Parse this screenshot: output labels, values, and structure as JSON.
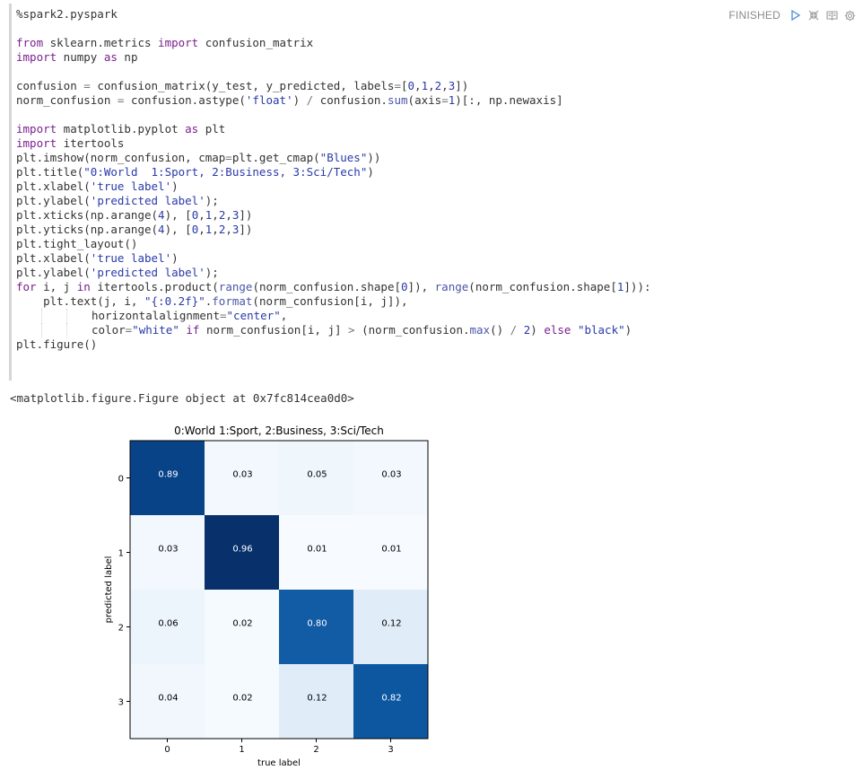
{
  "paragraph": {
    "status": "FINISHED",
    "toolbar": {
      "run_icon": "play-icon",
      "hide_editor_icon": "collapse-arrows-icon",
      "hide_output_icon": "book-icon",
      "settings_icon": "gear-icon"
    },
    "code_lines": [
      [
        {
          "t": "%spark2.pyspark",
          "c": ""
        }
      ],
      [],
      [
        {
          "t": "from",
          "c": "kw"
        },
        {
          "t": " sklearn.metrics ",
          "c": ""
        },
        {
          "t": "import",
          "c": "kw"
        },
        {
          "t": " confusion_matrix",
          "c": ""
        }
      ],
      [
        {
          "t": "import",
          "c": "kw"
        },
        {
          "t": " numpy ",
          "c": ""
        },
        {
          "t": "as",
          "c": "kw"
        },
        {
          "t": " np",
          "c": ""
        }
      ],
      [],
      [
        {
          "t": "confusion ",
          "c": ""
        },
        {
          "t": "=",
          "c": "op"
        },
        {
          "t": " confusion_matrix(y_test, y_predicted, labels",
          "c": ""
        },
        {
          "t": "=",
          "c": "op"
        },
        {
          "t": "[",
          "c": ""
        },
        {
          "t": "0",
          "c": "num"
        },
        {
          "t": ",",
          "c": ""
        },
        {
          "t": "1",
          "c": "num"
        },
        {
          "t": ",",
          "c": ""
        },
        {
          "t": "2",
          "c": "num"
        },
        {
          "t": ",",
          "c": ""
        },
        {
          "t": "3",
          "c": "num"
        },
        {
          "t": "])",
          "c": ""
        }
      ],
      [
        {
          "t": "norm_confusion ",
          "c": ""
        },
        {
          "t": "=",
          "c": "op"
        },
        {
          "t": " confusion.astype(",
          "c": ""
        },
        {
          "t": "'float'",
          "c": "str"
        },
        {
          "t": ") ",
          "c": ""
        },
        {
          "t": "/",
          "c": "op"
        },
        {
          "t": " confusion.",
          "c": ""
        },
        {
          "t": "sum",
          "c": "bi"
        },
        {
          "t": "(axis",
          "c": ""
        },
        {
          "t": "=",
          "c": "op"
        },
        {
          "t": "1",
          "c": "num"
        },
        {
          "t": ")[:, np.newaxis]",
          "c": ""
        }
      ],
      [],
      [
        {
          "t": "import",
          "c": "kw"
        },
        {
          "t": " matplotlib.pyplot ",
          "c": ""
        },
        {
          "t": "as",
          "c": "kw"
        },
        {
          "t": " plt",
          "c": ""
        }
      ],
      [
        {
          "t": "import",
          "c": "kw"
        },
        {
          "t": " itertools",
          "c": ""
        }
      ],
      [
        {
          "t": "plt.imshow(norm_confusion, cmap",
          "c": ""
        },
        {
          "t": "=",
          "c": "op"
        },
        {
          "t": "plt.get_cmap(",
          "c": ""
        },
        {
          "t": "\"Blues\"",
          "c": "str"
        },
        {
          "t": "))",
          "c": ""
        }
      ],
      [
        {
          "t": "plt.title(",
          "c": ""
        },
        {
          "t": "\"0:World  1:Sport, 2:Business, 3:Sci/Tech\"",
          "c": "str"
        },
        {
          "t": ")",
          "c": ""
        }
      ],
      [
        {
          "t": "plt.xlabel(",
          "c": ""
        },
        {
          "t": "'true label'",
          "c": "str"
        },
        {
          "t": ")",
          "c": ""
        }
      ],
      [
        {
          "t": "plt.ylabel(",
          "c": ""
        },
        {
          "t": "'predicted label'",
          "c": "str"
        },
        {
          "t": ");",
          "c": ""
        }
      ],
      [
        {
          "t": "plt.xticks(np.arange(",
          "c": ""
        },
        {
          "t": "4",
          "c": "num"
        },
        {
          "t": "), [",
          "c": ""
        },
        {
          "t": "0",
          "c": "num"
        },
        {
          "t": ",",
          "c": ""
        },
        {
          "t": "1",
          "c": "num"
        },
        {
          "t": ",",
          "c": ""
        },
        {
          "t": "2",
          "c": "num"
        },
        {
          "t": ",",
          "c": ""
        },
        {
          "t": "3",
          "c": "num"
        },
        {
          "t": "])",
          "c": ""
        }
      ],
      [
        {
          "t": "plt.yticks(np.arange(",
          "c": ""
        },
        {
          "t": "4",
          "c": "num"
        },
        {
          "t": "), [",
          "c": ""
        },
        {
          "t": "0",
          "c": "num"
        },
        {
          "t": ",",
          "c": ""
        },
        {
          "t": "1",
          "c": "num"
        },
        {
          "t": ",",
          "c": ""
        },
        {
          "t": "2",
          "c": "num"
        },
        {
          "t": ",",
          "c": ""
        },
        {
          "t": "3",
          "c": "num"
        },
        {
          "t": "])",
          "c": ""
        }
      ],
      [
        {
          "t": "plt.tight_layout()",
          "c": ""
        }
      ],
      [
        {
          "t": "plt.xlabel(",
          "c": ""
        },
        {
          "t": "'true label'",
          "c": "str"
        },
        {
          "t": ")",
          "c": ""
        }
      ],
      [
        {
          "t": "plt.ylabel(",
          "c": ""
        },
        {
          "t": "'predicted label'",
          "c": "str"
        },
        {
          "t": ");",
          "c": ""
        }
      ],
      [
        {
          "t": "for",
          "c": "kw"
        },
        {
          "t": " i, j ",
          "c": ""
        },
        {
          "t": "in",
          "c": "kw"
        },
        {
          "t": " itertools.product(",
          "c": ""
        },
        {
          "t": "range",
          "c": "bi"
        },
        {
          "t": "(norm_confusion.shape[",
          "c": ""
        },
        {
          "t": "0",
          "c": "num"
        },
        {
          "t": "]), ",
          "c": ""
        },
        {
          "t": "range",
          "c": "bi"
        },
        {
          "t": "(norm_confusion.shape[",
          "c": ""
        },
        {
          "t": "1",
          "c": "num"
        },
        {
          "t": "])):",
          "c": ""
        }
      ],
      [
        {
          "t": "    plt.text(j, i, ",
          "c": ""
        },
        {
          "t": "\"{:0.2f}\"",
          "c": "str"
        },
        {
          "t": ".",
          "c": ""
        },
        {
          "t": "format",
          "c": "bi"
        },
        {
          "t": "(norm_confusion[i, j]),",
          "c": ""
        }
      ],
      [
        {
          "g": 3
        },
        {
          "t": "horizontalalignment",
          "c": ""
        },
        {
          "t": "=",
          "c": "op"
        },
        {
          "t": "\"center\"",
          "c": "str"
        },
        {
          "t": ",",
          "c": ""
        }
      ],
      [
        {
          "g": 3
        },
        {
          "t": "color",
          "c": ""
        },
        {
          "t": "=",
          "c": "op"
        },
        {
          "t": "\"white\"",
          "c": "str"
        },
        {
          "t": " ",
          "c": ""
        },
        {
          "t": "if",
          "c": "kw"
        },
        {
          "t": " norm_confusion[i, j] ",
          "c": ""
        },
        {
          "t": ">",
          "c": "op"
        },
        {
          "t": " (norm_confusion.",
          "c": ""
        },
        {
          "t": "max",
          "c": "bi"
        },
        {
          "t": "() ",
          "c": ""
        },
        {
          "t": "/",
          "c": "op"
        },
        {
          "t": " ",
          "c": ""
        },
        {
          "t": "2",
          "c": "num"
        },
        {
          "t": ") ",
          "c": ""
        },
        {
          "t": "else",
          "c": "kw"
        },
        {
          "t": " ",
          "c": ""
        },
        {
          "t": "\"black\"",
          "c": "str"
        },
        {
          "t": ")",
          "c": ""
        }
      ],
      [
        {
          "t": "plt.figure()",
          "c": ""
        }
      ]
    ],
    "output_text": "<matplotlib.figure.Figure object at 0x7fc814cea0d0>"
  },
  "chart_data": {
    "type": "heatmap",
    "title": "0:World  1:Sport, 2:Business, 3:Sci/Tech",
    "xlabel": "true label",
    "ylabel": "predicted label",
    "x_ticks": [
      "0",
      "1",
      "2",
      "3"
    ],
    "y_ticks": [
      "0",
      "1",
      "2",
      "3"
    ],
    "colormap": "Blues",
    "values": [
      [
        0.89,
        0.03,
        0.05,
        0.03
      ],
      [
        0.03,
        0.96,
        0.01,
        0.01
      ],
      [
        0.06,
        0.02,
        0.8,
        0.12
      ],
      [
        0.04,
        0.02,
        0.12,
        0.82
      ]
    ],
    "cell_labels": [
      [
        "0.89",
        "0.03",
        "0.05",
        "0.03"
      ],
      [
        "0.03",
        "0.96",
        "0.01",
        "0.01"
      ],
      [
        "0.06",
        "0.02",
        "0.80",
        "0.12"
      ],
      [
        "0.04",
        "0.02",
        "0.12",
        "0.82"
      ]
    ]
  },
  "colors": {
    "text_dark": "#000000",
    "text_light": "#ffffff",
    "status": "#8a8a8a",
    "run_icon": "#4a90d9"
  }
}
